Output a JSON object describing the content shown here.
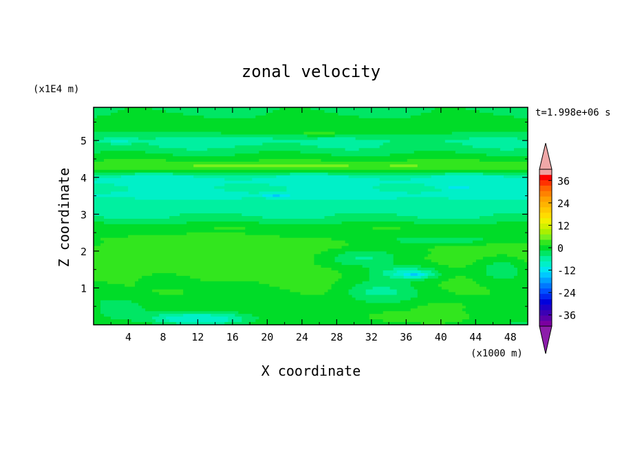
{
  "chart_data": {
    "type": "heatmap",
    "title": "zonal velocity",
    "xlabel": "X coordinate",
    "ylabel": "Z coordinate",
    "x_unit": "(x1000 m)",
    "y_unit": "(x1E4 m)",
    "time_label": "t=1.998e+06 s",
    "xlim": [
      0,
      50
    ],
    "ylim": [
      0,
      5.9
    ],
    "x_ticks": [
      "4",
      "8",
      "12",
      "16",
      "20",
      "24",
      "28",
      "32",
      "36",
      "40",
      "44",
      "48"
    ],
    "y_ticks": [
      "1",
      "2",
      "3",
      "4",
      "5"
    ],
    "colorbar": {
      "labels": [
        "36",
        "24",
        "12",
        "0",
        "-12",
        "-24",
        "-36"
      ],
      "levels": [
        -42,
        -39,
        -36,
        -33,
        -30,
        -27,
        -24,
        -21,
        -18,
        -15,
        -12,
        -9,
        -6,
        -3,
        0,
        3,
        6,
        9,
        12,
        15,
        18,
        21,
        24,
        27,
        30,
        33,
        36,
        39,
        42
      ],
      "colors": [
        "#7b00a0",
        "#5a00aa",
        "#3c00b4",
        "#1e00c8",
        "#0000dc",
        "#0028f0",
        "#0050ff",
        "#0078ff",
        "#00a0ff",
        "#00c8ff",
        "#00e6f0",
        "#00f0c8",
        "#00f0a0",
        "#00e664",
        "#00dc28",
        "#32e61e",
        "#78f01e",
        "#aaf000",
        "#d2f000",
        "#f0f000",
        "#ffdc00",
        "#ffc800",
        "#ffb400",
        "#ffa000",
        "#ff8200",
        "#ff6400",
        "#ff3200",
        "#ff0000",
        "#f0a0a0"
      ],
      "under_color": "#8c1eaa",
      "over_color": "#f0a8a8"
    },
    "bands": [
      {
        "z": 0.05,
        "u": 1.0
      },
      {
        "z": 0.3,
        "u": 2.0
      },
      {
        "z": 0.6,
        "u": 1.5
      },
      {
        "z": 0.9,
        "u": 2.5
      },
      {
        "z": 1.2,
        "u": 3.5
      },
      {
        "z": 1.5,
        "u": 4.5
      },
      {
        "z": 1.8,
        "u": 5.0
      },
      {
        "z": 2.1,
        "u": 4.0
      },
      {
        "z": 2.35,
        "u": 3.0
      },
      {
        "z": 2.5,
        "u": 1.5
      },
      {
        "z": 2.65,
        "u": 2.5
      },
      {
        "z": 2.85,
        "u": -2.0
      },
      {
        "z": 3.1,
        "u": -4.5
      },
      {
        "z": 3.4,
        "u": -6.0
      },
      {
        "z": 3.55,
        "u": -7.0
      },
      {
        "z": 3.7,
        "u": -6.0
      },
      {
        "z": 3.9,
        "u": -7.5
      },
      {
        "z": 4.05,
        "u": -5.5
      },
      {
        "z": 4.15,
        "u": 1.5
      },
      {
        "z": 4.3,
        "u": 4.5
      },
      {
        "z": 4.45,
        "u": 3.0
      },
      {
        "z": 4.6,
        "u": 0.5
      },
      {
        "z": 4.8,
        "u": -2.5
      },
      {
        "z": 5.0,
        "u": -3.5
      },
      {
        "z": 5.15,
        "u": -1.0
      },
      {
        "z": 5.3,
        "u": 1.5
      },
      {
        "z": 5.45,
        "u": 2.0
      },
      {
        "z": 5.6,
        "u": 1.0
      },
      {
        "z": 5.75,
        "u": -0.5
      },
      {
        "z": 5.9,
        "u": -1.0
      }
    ],
    "blobs": [
      {
        "x": 11,
        "z": 1.7,
        "rx": 8,
        "rz": 0.55,
        "u": 5
      },
      {
        "x": 8,
        "z": 1.2,
        "rx": 6,
        "rz": 0.4,
        "u": 2
      },
      {
        "x": 3,
        "z": 0.4,
        "rx": 4,
        "rz": 0.4,
        "u": -2
      },
      {
        "x": 12,
        "z": 0.15,
        "rx": 5,
        "rz": 0.12,
        "u": -14
      },
      {
        "x": 12,
        "z": 0.2,
        "rx": 7,
        "rz": 0.2,
        "u": -8
      },
      {
        "x": 37,
        "z": 0.2,
        "rx": 8,
        "rz": 0.2,
        "u": 6
      },
      {
        "x": 40,
        "z": 0.5,
        "rx": 6,
        "rz": 0.2,
        "u": 4
      },
      {
        "x": 36,
        "z": 1.4,
        "rx": 5,
        "rz": 0.25,
        "u": -9
      },
      {
        "x": 37,
        "z": 1.35,
        "rx": 2,
        "rz": 0.08,
        "u": -14
      },
      {
        "x": 33,
        "z": 0.9,
        "rx": 5,
        "rz": 0.35,
        "u": -5
      },
      {
        "x": 31,
        "z": 1.8,
        "rx": 6,
        "rz": 0.35,
        "u": -5
      },
      {
        "x": 20,
        "z": 4.3,
        "rx": 12,
        "rz": 0.08,
        "u": 9
      },
      {
        "x": 36,
        "z": 4.35,
        "rx": 8,
        "rz": 0.08,
        "u": 7
      },
      {
        "x": 25,
        "z": 5.2,
        "rx": 12,
        "rz": 0.1,
        "u": 4
      },
      {
        "x": 3,
        "z": 5.0,
        "rx": 2,
        "rz": 0.1,
        "u": -9
      },
      {
        "x": 17,
        "z": 5.0,
        "rx": 7,
        "rz": 0.22,
        "u": -4
      },
      {
        "x": 21,
        "z": 3.5,
        "rx": 2,
        "rz": 0.05,
        "u": -14
      },
      {
        "x": 42,
        "z": 3.75,
        "rx": 2,
        "rz": 0.05,
        "u": -14
      },
      {
        "x": 13,
        "z": 2.4,
        "rx": 11,
        "rz": 0.15,
        "u": 4
      },
      {
        "x": 40,
        "z": 2.3,
        "rx": 9,
        "rz": 0.15,
        "u": -3
      },
      {
        "x": 47,
        "z": 1.5,
        "rx": 4,
        "rz": 0.5,
        "u": -3
      }
    ]
  }
}
